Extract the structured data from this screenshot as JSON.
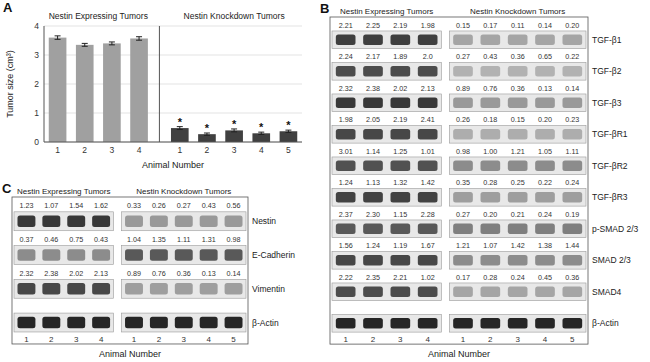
{
  "chart_data": [
    {
      "type": "bar",
      "title": "A",
      "categories": [
        "1",
        "2",
        "3",
        "4",
        "1",
        "2",
        "3",
        "4",
        "5"
      ],
      "values": [
        3.6,
        3.35,
        3.4,
        3.57,
        0.48,
        0.27,
        0.4,
        0.3,
        0.37
      ],
      "errors": [
        0.06,
        0.05,
        0.05,
        0.06,
        0.05,
        0.04,
        0.05,
        0.04,
        0.04
      ],
      "colors": [
        "#a0a0a0",
        "#a0a0a0",
        "#a0a0a0",
        "#a0a0a0",
        "#404040",
        "#404040",
        "#404040",
        "#404040",
        "#404040"
      ],
      "ylabel": "Tumor size (cm³)",
      "xlabel": "Animal Number",
      "ylim": [
        0,
        4
      ],
      "yticks": [
        0,
        1,
        2,
        3,
        4
      ],
      "grid": true,
      "annotations": [
        {
          "text": "Nestin Expressing Tumors",
          "categories": [
            0,
            1,
            2,
            3
          ]
        },
        {
          "text": "Nestin Knockdown Tumors",
          "categories": [
            4,
            5,
            6,
            7,
            8
          ]
        },
        {
          "text": "*",
          "category": 4
        },
        {
          "text": "*",
          "category": 5
        },
        {
          "text": "*",
          "category": 6
        },
        {
          "text": "*",
          "category": 7
        },
        {
          "text": "*",
          "category": 8
        }
      ]
    },
    {
      "type": "blot",
      "title": "B",
      "xlabel": "Animal Number",
      "rows": [
        "TGF-β1",
        "TGF-β2",
        "TGF-β3",
        "TGF-βR1",
        "TGF-βR2",
        "TGF-βR3",
        "p-SMAD 2/3",
        "SMAD 2/3",
        "SMAD4",
        "β-Actin"
      ],
      "groups": [
        {
          "name": "Nestin Expressing Tumors",
          "categories": [
            "1",
            "2",
            "3",
            "4"
          ],
          "values": [
            [
              2.21,
              2.25,
              2.19,
              1.98
            ],
            [
              2.24,
              2.17,
              1.89,
              2.0
            ],
            [
              2.32,
              2.38,
              2.02,
              2.13
            ],
            [
              1.98,
              2.05,
              2.19,
              2.41
            ],
            [
              3.01,
              1.14,
              1.25,
              1.01
            ],
            [
              1.24,
              1.13,
              1.32,
              1.42
            ],
            [
              2.37,
              2.3,
              1.15,
              2.28
            ],
            [
              1.56,
              1.24,
              1.19,
              1.67
            ],
            [
              2.22,
              2.35,
              2.21,
              1.02
            ],
            []
          ],
          "value_labels": [
            [
              "2.21",
              "2.25",
              "2.19",
              "1.98"
            ],
            [
              "2.24",
              "2.17",
              "1.89",
              "2.0"
            ],
            [
              "2.32",
              "2.38",
              "2.02",
              "2.13"
            ],
            [
              "1.98",
              "2.05",
              "2.19",
              "2.41"
            ],
            [
              "3.01",
              "1.14",
              "1.25",
              "1.01"
            ],
            [
              "1.24",
              "1.13",
              "1.32",
              "1.42"
            ],
            [
              "2.37",
              "2.30",
              "1.15",
              "2.28"
            ],
            [
              "1.56",
              "1.24",
              "1.19",
              "1.67"
            ],
            [
              "2.22",
              "2.35",
              "2.21",
              "1.02"
            ],
            []
          ],
          "band_intensities": [
            0.25,
            0.3,
            0.22,
            0.28,
            0.32,
            0.26,
            0.35,
            0.28,
            0.3,
            0.15
          ]
        },
        {
          "name": "Nestin Knockdown Tumors",
          "categories": [
            "1",
            "2",
            "3",
            "4",
            "5"
          ],
          "values": [
            [
              0.15,
              0.17,
              0.11,
              0.14,
              0.2
            ],
            [
              0.27,
              0.43,
              0.36,
              0.65,
              0.22
            ],
            [
              0.89,
              0.76,
              0.36,
              0.13,
              0.14
            ],
            [
              0.26,
              0.18,
              0.15,
              0.2,
              0.23
            ],
            [
              0.98,
              1.0,
              1.21,
              1.05,
              1.11
            ],
            [
              0.35,
              0.28,
              0.25,
              0.22,
              0.24
            ],
            [
              0.27,
              0.2,
              0.21,
              0.24,
              0.19
            ],
            [
              1.21,
              1.07,
              1.42,
              1.38,
              1.44
            ],
            [
              0.17,
              0.28,
              0.24,
              0.45,
              0.36
            ],
            []
          ],
          "value_labels": [
            [
              "0.15",
              "0.17",
              "0.11",
              "0.14",
              "0.20"
            ],
            [
              "0.27",
              "0.43",
              "0.36",
              "0.65",
              "0.22"
            ],
            [
              "0.89",
              "0.76",
              "0.36",
              "0.13",
              "0.14"
            ],
            [
              "0.26",
              "0.18",
              "0.15",
              "0.20",
              "0.23"
            ],
            [
              "0.98",
              "1.00",
              "1.21",
              "1.05",
              "1.11"
            ],
            [
              "0.35",
              "0.28",
              "0.25",
              "0.22",
              "0.24"
            ],
            [
              "0.27",
              "0.20",
              "0.21",
              "0.24",
              "0.19"
            ],
            [
              "1.21",
              "1.07",
              "1.42",
              "1.38",
              "1.44"
            ],
            [
              "0.17",
              "0.28",
              "0.24",
              "0.45",
              "0.36"
            ],
            []
          ],
          "band_intensities": [
            0.65,
            0.7,
            0.6,
            0.68,
            0.55,
            0.62,
            0.5,
            0.55,
            0.65,
            0.15
          ]
        }
      ]
    },
    {
      "type": "blot",
      "title": "C",
      "xlabel": "Animal Number",
      "rows": [
        "Nestin",
        "E-Cadherin",
        "Vimentin",
        "β-Actin"
      ],
      "groups": [
        {
          "name": "Nestin Expressing Tumors",
          "categories": [
            "1",
            "2",
            "3",
            "4"
          ],
          "values": [
            [
              1.23,
              1.07,
              1.54,
              1.62
            ],
            [
              0.37,
              0.46,
              0.75,
              0.43
            ],
            [
              2.32,
              2.38,
              2.02,
              2.13
            ],
            []
          ],
          "value_labels": [
            [
              "1.23",
              "1.07",
              "1.54",
              "1.62"
            ],
            [
              "0.37",
              "0.46",
              "0.75",
              "0.43"
            ],
            [
              "2.32",
              "2.38",
              "2.02",
              "2.13"
            ],
            []
          ],
          "band_intensities": [
            0.22,
            0.55,
            0.28,
            0.15
          ]
        },
        {
          "name": "Nestin Knockdown Tumors",
          "categories": [
            "1",
            "2",
            "3",
            "4",
            "5"
          ],
          "values": [
            [
              0.33,
              0.26,
              0.27,
              0.43,
              0.56
            ],
            [
              1.04,
              1.35,
              1.11,
              1.31,
              0.98
            ],
            [
              0.89,
              0.76,
              0.36,
              0.13,
              0.14
            ],
            []
          ],
          "value_labels": [
            [
              "0.33",
              "0.26",
              "0.27",
              "0.43",
              "0.56"
            ],
            [
              "1.04",
              "1.35",
              "1.11",
              "1.31",
              "0.98"
            ],
            [
              "0.89",
              "0.76",
              "0.36",
              "0.13",
              "0.14"
            ],
            []
          ],
          "band_intensities": [
            0.6,
            0.35,
            0.62,
            0.15
          ]
        }
      ]
    }
  ]
}
